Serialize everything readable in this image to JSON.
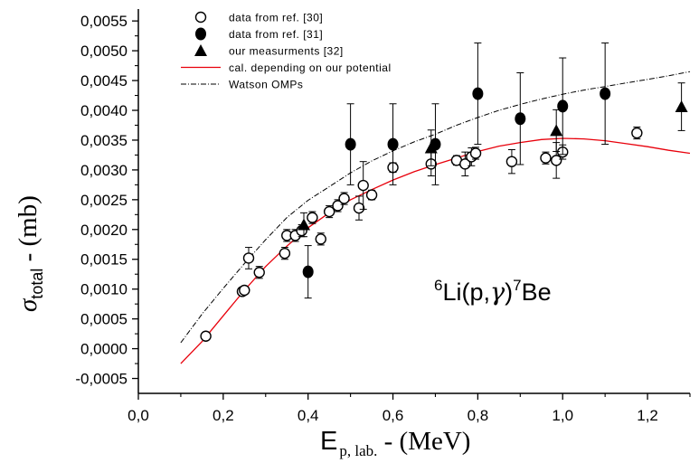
{
  "chart_data": {
    "type": "scatter",
    "xlabel": {
      "main": "E",
      "sub": "p, lab.",
      "suffix": " - (MeV)"
    },
    "ylabel": {
      "main": "σ",
      "sub": "total",
      "suffix": " - (mb)"
    },
    "xlim": [
      0.0,
      1.3
    ],
    "ylim": [
      -0.00075,
      0.0057
    ],
    "x_ticks": [
      "0,0",
      "0,2",
      "0,4",
      "0,6",
      "0,8",
      "1,0",
      "1,2"
    ],
    "x_tick_values": [
      0.0,
      0.2,
      0.4,
      0.6,
      0.8,
      1.0,
      1.2
    ],
    "y_ticks": [
      "-0,0005",
      "0,0000",
      "0,0005",
      "0,0010",
      "0,0015",
      "0,0020",
      "0,0025",
      "0,0030",
      "0,0035",
      "0,0040",
      "0,0045",
      "0,0050",
      "0,0055"
    ],
    "y_tick_values": [
      -0.0005,
      0.0,
      0.0005,
      0.001,
      0.0015,
      0.002,
      0.0025,
      0.003,
      0.0035,
      0.004,
      0.0045,
      0.005,
      0.0055
    ],
    "annotation": {
      "pre_sup": "6",
      "a": "Li(p,",
      "gamma": "γ",
      "b": ")",
      "mid_sup": "7",
      "c": "Be"
    },
    "legend_position": "top-left",
    "grid": false,
    "series": [
      {
        "name": "data from ref. [30]",
        "marker": "open-circle",
        "points": [
          {
            "x": 0.159,
            "y": 0.00021,
            "err": 3e-05
          },
          {
            "x": 0.245,
            "y": 0.00096,
            "err": 4e-05
          },
          {
            "x": 0.25,
            "y": 0.00098,
            "err": 4e-05
          },
          {
            "x": 0.26,
            "y": 0.00152,
            "err": 0.00018
          },
          {
            "x": 0.285,
            "y": 0.00128,
            "err": 0.0001
          },
          {
            "x": 0.345,
            "y": 0.0016,
            "err": 0.0001
          },
          {
            "x": 0.35,
            "y": 0.0019,
            "err": 0.0001
          },
          {
            "x": 0.37,
            "y": 0.0019,
            "err": 0.0001
          },
          {
            "x": 0.385,
            "y": 0.00198,
            "err": 0.0001
          },
          {
            "x": 0.41,
            "y": 0.0022,
            "err": 0.0001
          },
          {
            "x": 0.43,
            "y": 0.00184,
            "err": 0.0001
          },
          {
            "x": 0.45,
            "y": 0.0023,
            "err": 0.0001
          },
          {
            "x": 0.47,
            "y": 0.0024,
            "err": 0.0001
          },
          {
            "x": 0.485,
            "y": 0.00252,
            "err": 0.0001
          },
          {
            "x": 0.52,
            "y": 0.00236,
            "err": 0.0002
          },
          {
            "x": 0.53,
            "y": 0.00274,
            "err": 0.0004
          },
          {
            "x": 0.55,
            "y": 0.00258,
            "err": 8e-05
          },
          {
            "x": 0.6,
            "y": 0.00304,
            "err": 8e-05
          },
          {
            "x": 0.69,
            "y": 0.0031,
            "err": 0.0002
          },
          {
            "x": 0.75,
            "y": 0.00316,
            "err": 8e-05
          },
          {
            "x": 0.77,
            "y": 0.0031,
            "err": 0.0002
          },
          {
            "x": 0.785,
            "y": 0.00322,
            "err": 0.00015
          },
          {
            "x": 0.795,
            "y": 0.00328,
            "err": 0.0001
          },
          {
            "x": 0.88,
            "y": 0.00314,
            "err": 0.0002
          },
          {
            "x": 0.96,
            "y": 0.0032,
            "err": 0.0001
          },
          {
            "x": 0.985,
            "y": 0.00316,
            "err": 0.0003
          },
          {
            "x": 1.0,
            "y": 0.0033,
            "err": 0.00012
          },
          {
            "x": 1.175,
            "y": 0.00362,
            "err": 0.0001
          }
        ]
      },
      {
        "name": "data from ref. [31]",
        "marker": "filled-circle",
        "points": [
          {
            "x": 0.4,
            "y": 0.00129,
            "err": 0.00044
          },
          {
            "x": 0.5,
            "y": 0.00343,
            "err": 0.00068
          },
          {
            "x": 0.6,
            "y": 0.00343,
            "err": 0.00068
          },
          {
            "x": 0.7,
            "y": 0.00343,
            "err": 0.00068
          },
          {
            "x": 0.8,
            "y": 0.00428,
            "err": 0.00085
          },
          {
            "x": 0.9,
            "y": 0.00386,
            "err": 0.00077
          },
          {
            "x": 1.0,
            "y": 0.00407,
            "err": 0.00081
          },
          {
            "x": 1.1,
            "y": 0.00428,
            "err": 0.00085
          }
        ]
      },
      {
        "name": "our measurments [32]",
        "marker": "filled-triangle",
        "points": [
          {
            "x": 0.39,
            "y": 0.00208,
            "err": 0.0002
          },
          {
            "x": 0.69,
            "y": 0.00337,
            "err": 0.0003
          },
          {
            "x": 0.985,
            "y": 0.00366,
            "err": 0.00035
          },
          {
            "x": 1.28,
            "y": 0.00406,
            "err": 0.0004
          }
        ]
      },
      {
        "name": "cal. depending on our potential",
        "marker": "line",
        "color": "#e8000b",
        "x": [
          0.1,
          0.15,
          0.2,
          0.25,
          0.3,
          0.35,
          0.4,
          0.45,
          0.5,
          0.55,
          0.6,
          0.65,
          0.7,
          0.75,
          0.8,
          0.85,
          0.9,
          0.95,
          1.0,
          1.05,
          1.1,
          1.15,
          1.2,
          1.25,
          1.3
        ],
        "y": [
          -0.00025,
          0.00012,
          0.00055,
          0.00098,
          0.00138,
          0.00172,
          0.00203,
          0.00228,
          0.0025,
          0.00267,
          0.00283,
          0.00297,
          0.00309,
          0.0032,
          0.00331,
          0.0034,
          0.00346,
          0.00351,
          0.00353,
          0.00352,
          0.00349,
          0.00344,
          0.00339,
          0.00333,
          0.00328
        ]
      },
      {
        "name": "Watson OMPs",
        "marker": "dash-dot",
        "color": "#000000",
        "x": [
          0.1,
          0.15,
          0.2,
          0.25,
          0.3,
          0.35,
          0.4,
          0.45,
          0.5,
          0.55,
          0.6,
          0.65,
          0.7,
          0.75,
          0.8,
          0.85,
          0.9,
          0.95,
          1.0,
          1.05,
          1.1,
          1.15,
          1.2,
          1.25,
          1.3
        ],
        "y": [
          0.0001,
          0.00058,
          0.00101,
          0.00143,
          0.00183,
          0.0022,
          0.00249,
          0.00272,
          0.00295,
          0.00315,
          0.00332,
          0.00347,
          0.0036,
          0.00375,
          0.00388,
          0.004,
          0.0041,
          0.00419,
          0.00427,
          0.00434,
          0.0044,
          0.00446,
          0.00452,
          0.00458,
          0.00465
        ]
      }
    ]
  }
}
